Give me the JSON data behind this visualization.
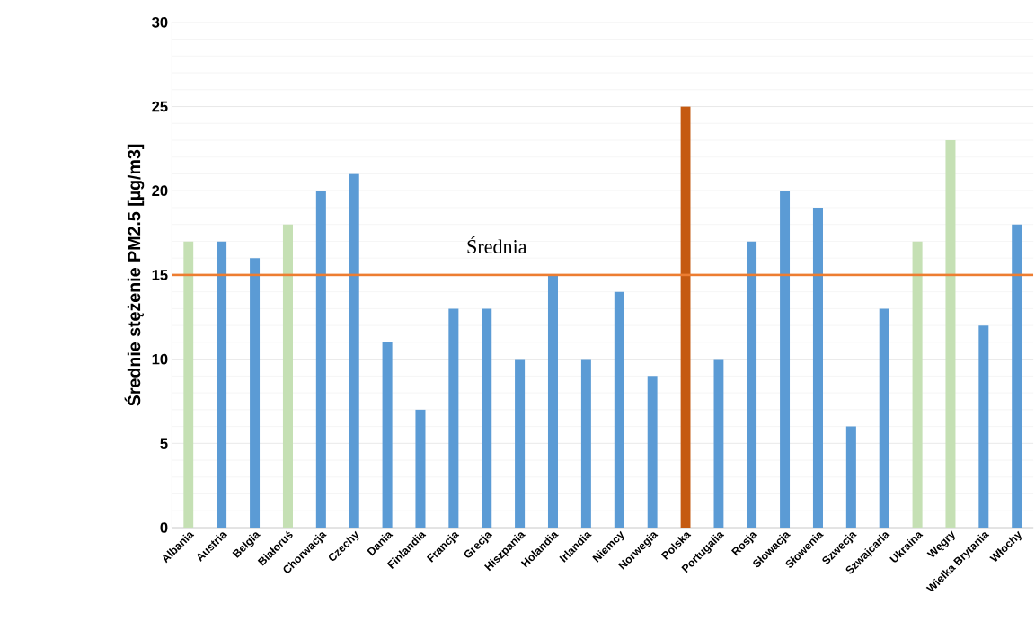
{
  "chart_data": {
    "type": "bar",
    "ylabel": "Średnie stężenie PM2.5 [µg/m3]",
    "categories": [
      "Albania",
      "Austria",
      "Belgia",
      "Białoruś",
      "Chorwacja",
      "Czechy",
      "Dania",
      "Finlandia",
      "Francja",
      "Grecja",
      "Hiszpania",
      "Holandia",
      "Irlandia",
      "Niemcy",
      "Norwegia",
      "Polska",
      "Portugalia",
      "Rosja",
      "Słowacja",
      "Słowenia",
      "Szwecja",
      "Szwajcaria",
      "Ukraina",
      "Węgry",
      "Wielka Brytania",
      "Włochy"
    ],
    "values": [
      17,
      17,
      16,
      18,
      20,
      21,
      11,
      7,
      13,
      13,
      10,
      15,
      10,
      14,
      9,
      25,
      10,
      17,
      20,
      19,
      6,
      13,
      17,
      23,
      12,
      18
    ],
    "colors": [
      "#c5e0b4",
      "#5b9bd5",
      "#5b9bd5",
      "#c5e0b4",
      "#5b9bd5",
      "#5b9bd5",
      "#5b9bd5",
      "#5b9bd5",
      "#5b9bd5",
      "#5b9bd5",
      "#5b9bd5",
      "#5b9bd5",
      "#5b9bd5",
      "#5b9bd5",
      "#5b9bd5",
      "#c55a11",
      "#5b9bd5",
      "#5b9bd5",
      "#5b9bd5",
      "#5b9bd5",
      "#5b9bd5",
      "#5b9bd5",
      "#c5e0b4",
      "#c5e0b4",
      "#5b9bd5",
      "#5b9bd5"
    ],
    "ylim": [
      0,
      30
    ],
    "yticks": [
      0,
      5,
      10,
      15,
      20,
      25,
      30
    ],
    "grid": "y",
    "ref_lines": [
      {
        "axis": "y",
        "value": 15,
        "label": "Średnia",
        "color": "#ed7d31"
      }
    ]
  }
}
